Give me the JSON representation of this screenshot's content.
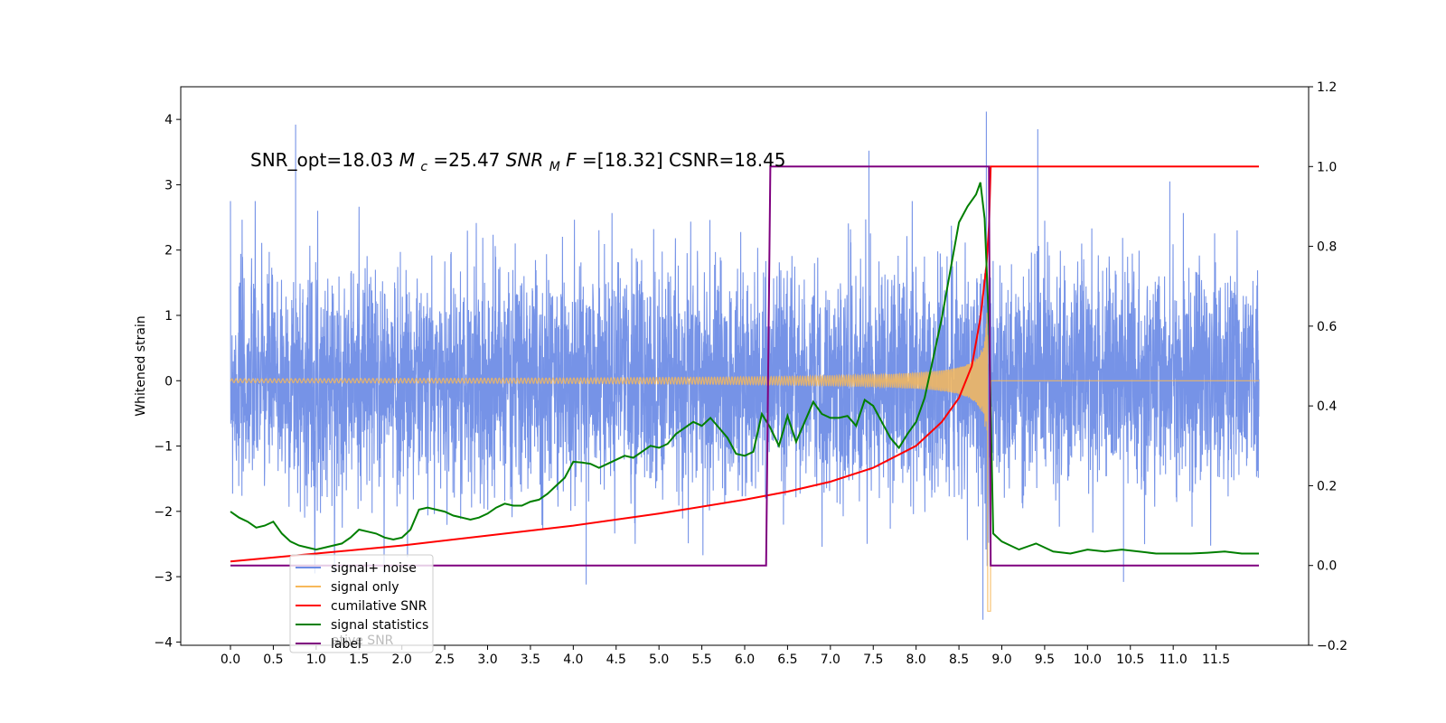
{
  "chart_data": {
    "type": "line",
    "title": "SNR_opt=18.03 $M_c$=25.47  $SNR_MF$=[18.32] CSNR=18.45",
    "title_parts": {
      "a": "SNR_opt=18.03 ",
      "mc_var": "M",
      "mc_sub": "c",
      "mc_val": "=25.47  ",
      "snr_var": "SNR",
      "snr_sub": "M",
      "snr_var2": "F",
      "snr_val": "=[18.32] CSNR=18.45"
    },
    "ylabel_left": "Whitened strain",
    "xlabel": "",
    "x_ticks": [
      "0.0",
      "0.5",
      "1.0",
      "1.5",
      "2.0",
      "2.5",
      "3.0",
      "3.5",
      "4.0",
      "4.5",
      "5.0",
      "5.5",
      "6.0",
      "6.5",
      "7.0",
      "7.5",
      "8.0",
      "8.5",
      "9.0",
      "9.5",
      "10.0",
      "10.5",
      "11.0",
      "11.5"
    ],
    "y_ticks_left": [
      "4",
      "3",
      "2",
      "1",
      "0",
      "−1",
      "−2",
      "−3",
      "−4"
    ],
    "y_ticks_right": [
      "1.2",
      "1.0",
      "0.8",
      "0.6",
      "0.4",
      "0.2",
      "0.0",
      "−0.2"
    ],
    "xlim": [
      -0.58,
      12.58
    ],
    "ylim_left": [
      -4.05,
      4.5
    ],
    "ylim_right": [
      -0.2,
      1.2
    ],
    "grid": false,
    "legend_position": "lower-left",
    "legend_overlap_fragment": "ative SNR",
    "colors": {
      "signal_noise": "#6f8de6",
      "signal_only": "#f7b85a",
      "cumulative": "#ff0000",
      "statistics": "#007f00",
      "label": "#7f007f"
    },
    "legend": [
      {
        "name": "signal+ noise",
        "color": "#6f8de6"
      },
      {
        "name": "signal only",
        "color": "#f7b85a"
      },
      {
        "name": "cumilative SNR",
        "color": "#ff0000"
      },
      {
        "name": "signal statistics",
        "color": "#007f00"
      },
      {
        "name": "label",
        "color": "#7f007f"
      }
    ],
    "series": [
      {
        "name": "signal+ noise",
        "axis": "left",
        "x_range": [
          0,
          12.0
        ],
        "sigma": 1.0,
        "note_spikes": [
          [
            0.76,
            3.92
          ],
          [
            8.82,
            4.12
          ],
          [
            8.78,
            -3.66
          ],
          [
            9.42,
            3.85
          ],
          [
            7.45,
            3.52
          ],
          [
            4.15,
            -3.12
          ],
          [
            10.42,
            -3.08
          ],
          [
            10.96,
            3.05
          ]
        ]
      },
      {
        "name": "signal only",
        "axis": "left",
        "chirp": {
          "start": 0,
          "merger": 8.85,
          "end": 12.0,
          "amp_start": 0.03,
          "amp_peak": 3.5,
          "min_amp": -3.6
        }
      },
      {
        "name": "cumilative SNR",
        "axis": "right",
        "x": [
          0.0,
          1.0,
          2.0,
          3.0,
          4.0,
          5.0,
          6.0,
          6.5,
          7.0,
          7.5,
          8.0,
          8.3,
          8.5,
          8.65,
          8.75,
          8.82,
          8.85,
          8.87,
          12.0
        ],
        "y": [
          0.01,
          0.03,
          0.05,
          0.075,
          0.1,
          0.13,
          0.165,
          0.185,
          0.21,
          0.245,
          0.3,
          0.36,
          0.42,
          0.5,
          0.62,
          0.75,
          0.85,
          1.0,
          1.0
        ]
      },
      {
        "name": "signal statistics",
        "axis": "right",
        "x": [
          0.0,
          0.1,
          0.2,
          0.3,
          0.4,
          0.5,
          0.6,
          0.7,
          0.8,
          0.9,
          1.0,
          1.1,
          1.2,
          1.3,
          1.4,
          1.5,
          1.6,
          1.7,
          1.8,
          1.9,
          2.0,
          2.1,
          2.2,
          2.3,
          2.4,
          2.5,
          2.6,
          2.7,
          2.8,
          2.9,
          3.0,
          3.1,
          3.2,
          3.3,
          3.4,
          3.5,
          3.6,
          3.7,
          3.8,
          3.9,
          4.0,
          4.1,
          4.2,
          4.3,
          4.4,
          4.5,
          4.6,
          4.7,
          4.8,
          4.9,
          5.0,
          5.1,
          5.2,
          5.3,
          5.4,
          5.5,
          5.6,
          5.7,
          5.8,
          5.9,
          6.0,
          6.1,
          6.2,
          6.3,
          6.4,
          6.5,
          6.6,
          6.7,
          6.8,
          6.9,
          7.0,
          7.1,
          7.2,
          7.3,
          7.4,
          7.5,
          7.6,
          7.7,
          7.8,
          7.9,
          8.0,
          8.1,
          8.2,
          8.3,
          8.4,
          8.5,
          8.6,
          8.7,
          8.75,
          8.8,
          8.85,
          8.9,
          9.0,
          9.2,
          9.4,
          9.6,
          9.8,
          10.0,
          10.2,
          10.4,
          10.6,
          10.8,
          11.0,
          11.2,
          11.4,
          11.6,
          11.8,
          12.0
        ],
        "y": [
          0.135,
          0.12,
          0.11,
          0.095,
          0.1,
          0.11,
          0.08,
          0.06,
          0.05,
          0.045,
          0.04,
          0.045,
          0.05,
          0.055,
          0.07,
          0.09,
          0.085,
          0.08,
          0.07,
          0.065,
          0.07,
          0.09,
          0.14,
          0.145,
          0.14,
          0.135,
          0.125,
          0.12,
          0.115,
          0.12,
          0.13,
          0.145,
          0.155,
          0.15,
          0.15,
          0.16,
          0.165,
          0.18,
          0.2,
          0.22,
          0.26,
          0.258,
          0.255,
          0.245,
          0.255,
          0.265,
          0.275,
          0.27,
          0.285,
          0.3,
          0.295,
          0.305,
          0.33,
          0.345,
          0.36,
          0.35,
          0.37,
          0.345,
          0.32,
          0.28,
          0.275,
          0.285,
          0.38,
          0.345,
          0.3,
          0.375,
          0.31,
          0.36,
          0.41,
          0.38,
          0.37,
          0.37,
          0.375,
          0.35,
          0.415,
          0.4,
          0.36,
          0.32,
          0.295,
          0.33,
          0.36,
          0.42,
          0.52,
          0.62,
          0.74,
          0.86,
          0.9,
          0.93,
          0.96,
          0.87,
          0.6,
          0.08,
          0.06,
          0.04,
          0.055,
          0.035,
          0.03,
          0.04,
          0.035,
          0.04,
          0.035,
          0.03,
          0.03,
          0.03,
          0.032,
          0.035,
          0.03,
          0.03
        ]
      },
      {
        "name": "label",
        "axis": "right",
        "x": [
          0.0,
          6.25,
          6.3,
          8.85,
          8.87,
          12.0
        ],
        "y": [
          0.0,
          0.0,
          1.0,
          1.0,
          0.0,
          0.0
        ]
      }
    ]
  }
}
